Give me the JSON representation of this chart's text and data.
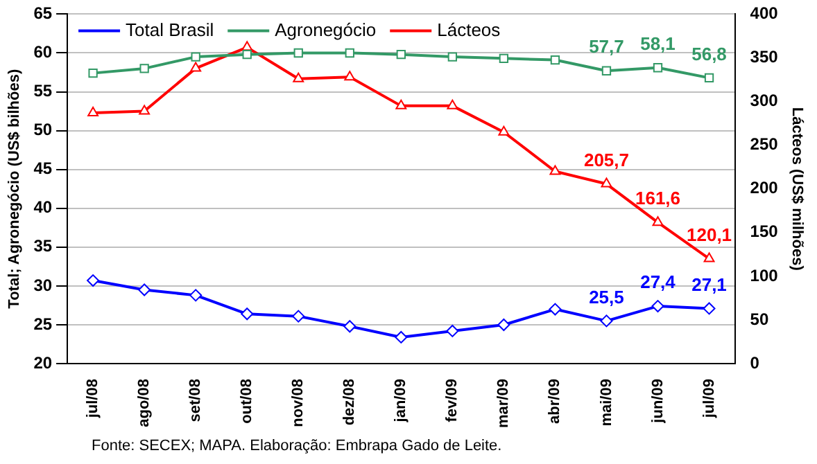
{
  "chart_data": {
    "type": "line",
    "categories": [
      "jul/08",
      "ago/08",
      "set/08",
      "out/08",
      "nov/08",
      "dez/08",
      "jan/09",
      "fev/09",
      "mar/09",
      "abr/09",
      "mai/09",
      "jun/09",
      "jul/09"
    ],
    "series": [
      {
        "name": "Total Brasil",
        "color": "#0000ff",
        "marker": "diamond",
        "values": [
          30.7,
          29.5,
          28.8,
          26.4,
          26.1,
          24.8,
          23.4,
          24.2,
          25.0,
          27.0,
          25.5,
          27.4,
          27.1
        ],
        "value_labels": [
          null,
          null,
          null,
          null,
          null,
          null,
          null,
          null,
          null,
          null,
          "25,5",
          "27,4",
          "27,1"
        ]
      },
      {
        "name": "Agronegócio",
        "color": "#339966",
        "marker": "square",
        "values": [
          57.4,
          58.0,
          59.5,
          59.8,
          60.0,
          60.0,
          59.8,
          59.5,
          59.3,
          59.1,
          57.7,
          58.1,
          56.8
        ],
        "value_labels": [
          null,
          null,
          null,
          null,
          null,
          null,
          null,
          null,
          null,
          null,
          "57,7",
          "58,1",
          "56,8"
        ]
      },
      {
        "name": "Lácteos",
        "color": "#ff0000",
        "marker": "triangle",
        "axis": "y2",
        "values": [
          287,
          289,
          338,
          362,
          326,
          328,
          295,
          295,
          265,
          220,
          205.7,
          161.6,
          120.1
        ],
        "value_labels": [
          null,
          null,
          null,
          null,
          null,
          null,
          null,
          null,
          null,
          null,
          "205,7",
          "161,6",
          "120,1"
        ]
      }
    ],
    "ylabel": "Total; Agronegócio (US$ bilhões)",
    "y2label": "Lácteos (US$ milhões)",
    "ylim": [
      20,
      65
    ],
    "yticks": [
      20,
      25,
      30,
      35,
      40,
      45,
      50,
      55,
      60,
      65
    ],
    "y2lim": [
      0,
      400
    ],
    "y2ticks": [
      0,
      50,
      100,
      150,
      200,
      250,
      300,
      350,
      400
    ],
    "grid": "y",
    "legend": "top left",
    "annotations": [
      "Fonte: SECEX; MAPA. Elaboração: Embrapa Gado de Leite."
    ]
  }
}
